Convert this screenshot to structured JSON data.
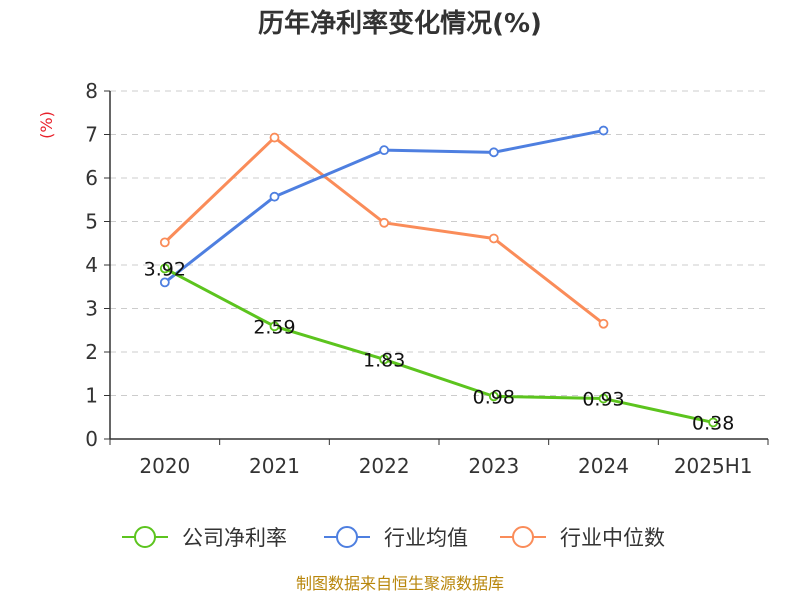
{
  "chart_data": {
    "type": "line",
    "title": "历年净利率变化情况(%)",
    "ylabel": "(%)",
    "xlabel": "",
    "categories": [
      "2020",
      "2021",
      "2022",
      "2023",
      "2024",
      "2025H1"
    ],
    "ylim": [
      0,
      8
    ],
    "yticks": [
      "0",
      "1",
      "2",
      "3",
      "4",
      "5",
      "6",
      "7",
      "8"
    ],
    "grid": true,
    "legend_position": "bottom",
    "series": [
      {
        "name": "公司净利率",
        "color": "#5cc41e",
        "values": [
          3.92,
          2.59,
          1.83,
          0.98,
          0.93,
          0.38
        ],
        "labels": [
          "3.92",
          "2.59",
          "1.83",
          "0.98",
          "0.93",
          "0.38"
        ]
      },
      {
        "name": "行业均值",
        "color": "#4e7fe0",
        "values": [
          3.6,
          5.57,
          6.64,
          6.59,
          7.09,
          null
        ]
      },
      {
        "name": "行业中位数",
        "color": "#fa8c59",
        "values": [
          4.52,
          6.93,
          4.97,
          4.61,
          2.65,
          null
        ]
      }
    ]
  },
  "source_text": "制图数据来自恒生聚源数据库"
}
